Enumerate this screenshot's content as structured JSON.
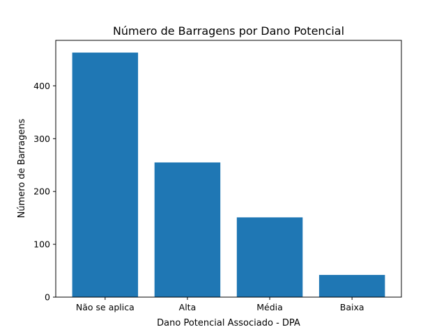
{
  "chart_data": {
    "type": "bar",
    "title": "Número de Barragens por Dano Potencial",
    "xlabel": "Dano Potencial Associado - DPA",
    "ylabel": "Número de Barragens",
    "categories": [
      "Não se aplica",
      "Alta",
      "Média",
      "Baixa"
    ],
    "values": [
      463,
      255,
      151,
      42
    ],
    "ylim": [
      0,
      486.15
    ],
    "yticks": [
      0,
      100,
      200,
      300,
      400
    ],
    "grid": false,
    "bar_color": "#1f77b4"
  }
}
